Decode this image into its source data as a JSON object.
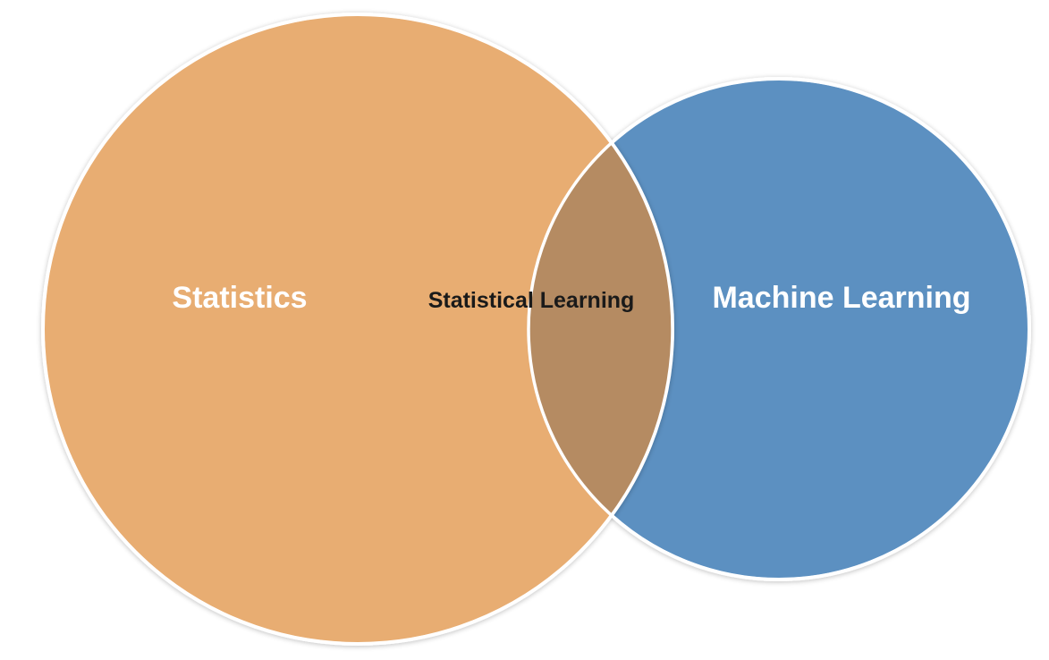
{
  "diagram": {
    "type": "venn",
    "sets": [
      {
        "id": "left",
        "label": "Statistics",
        "fill": "#e8ad72",
        "label_color": "#ffffff"
      },
      {
        "id": "right",
        "label": "Machine Learning",
        "fill": "#5c90c1",
        "label_color": "#ffffff"
      }
    ],
    "intersection": {
      "label": "Statistical Learning",
      "fill": "#b58b62",
      "label_color": "#1a1a1a"
    },
    "outline_color": "#ffffff",
    "background": "#ffffff"
  }
}
